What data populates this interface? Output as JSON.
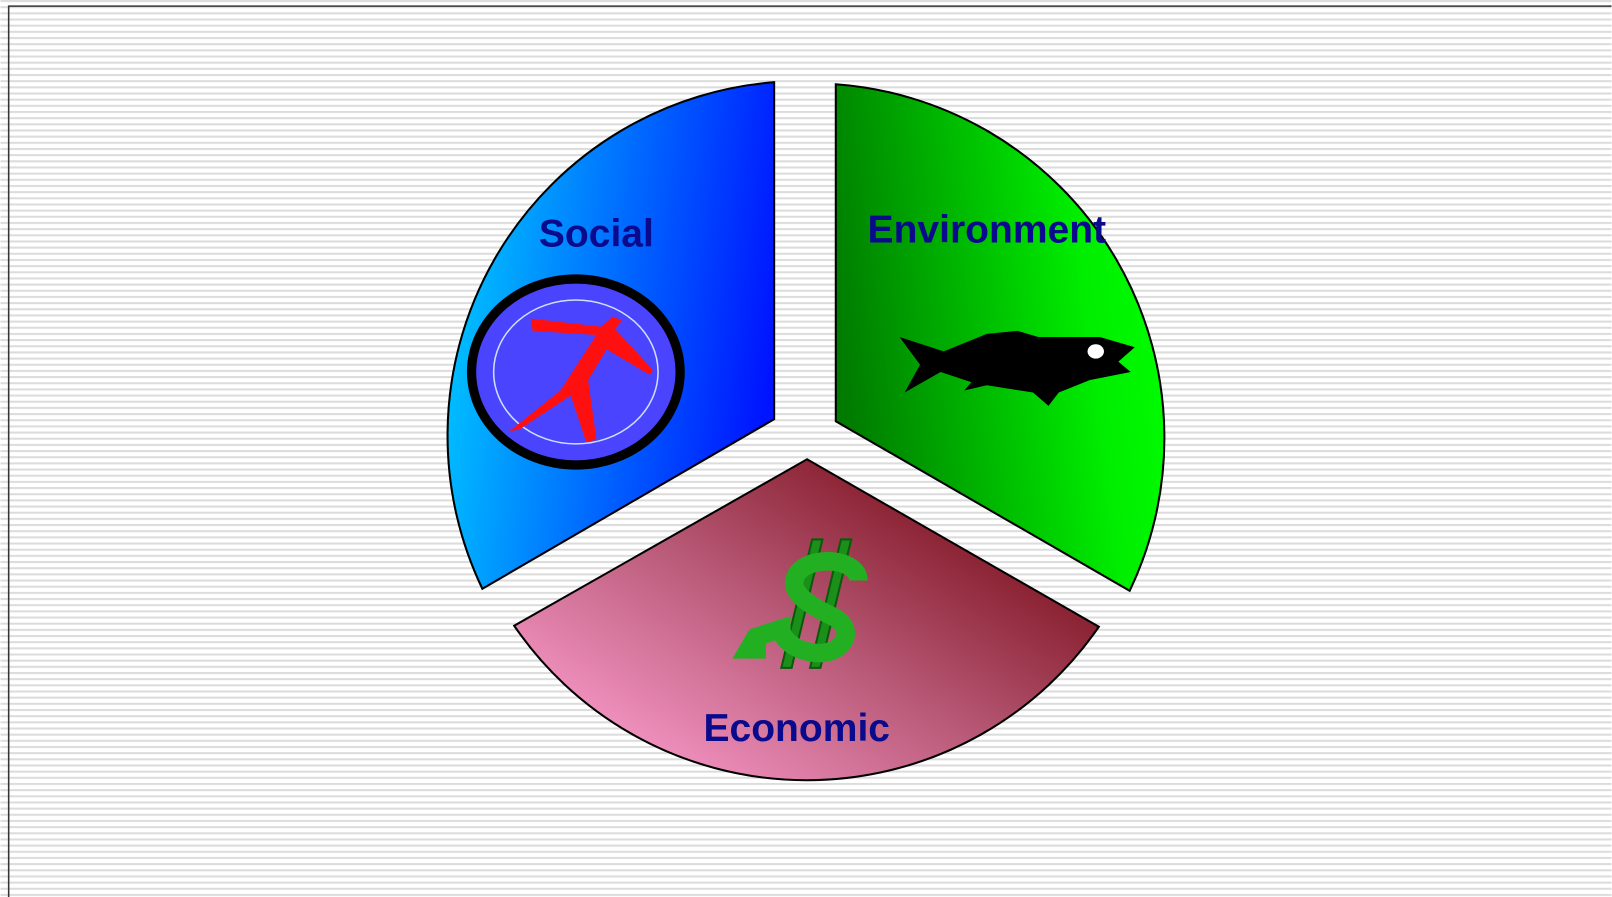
{
  "segments": [
    {
      "label": "Social"
    },
    {
      "label": "Environment"
    },
    {
      "label": "Economic"
    }
  ]
}
